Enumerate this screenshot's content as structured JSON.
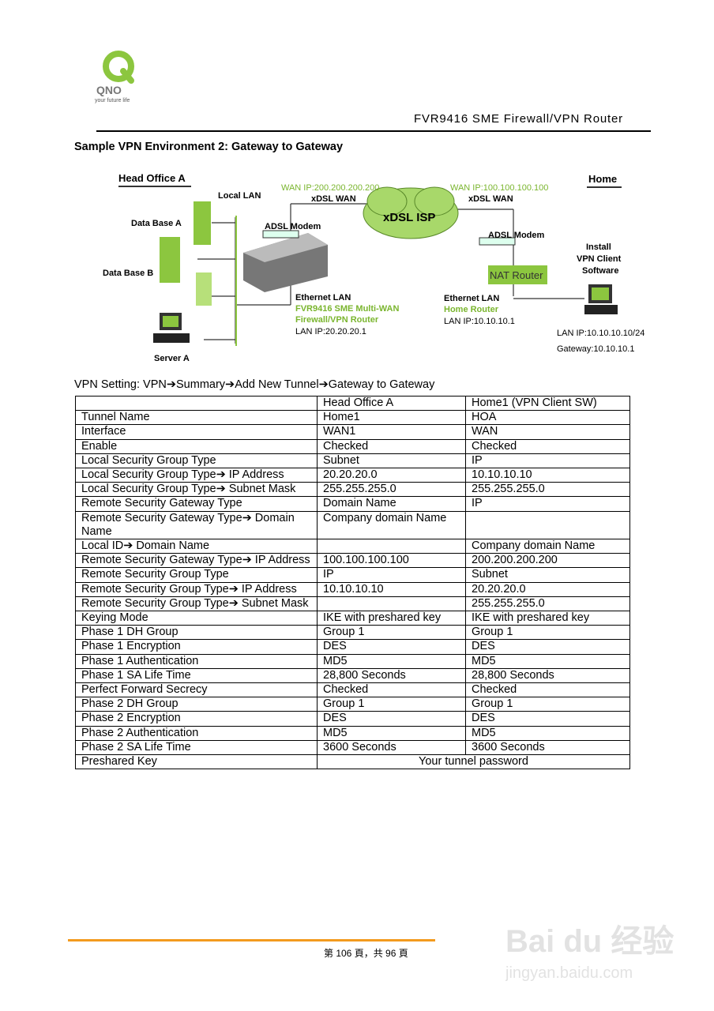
{
  "header": {
    "logo_text": "QNO",
    "logo_tagline": "your future life",
    "title": "FVR9416 SME Firewall/VPN Router"
  },
  "section_title": "Sample VPN Environment 2: Gateway to Gateway",
  "diagram": {
    "head_office": "Head Office A",
    "home": "Home",
    "local_lan": "Local LAN",
    "db_a": "Data Base  A",
    "db_b": "Data Base B",
    "server_a": "Server A",
    "wan_ip_left": "WAN IP:200.200.200.200",
    "xdsl_wan_left": "xDSL WAN",
    "wan_ip_right": "WAN IP:100.100.100.100",
    "xdsl_wan_right": "xDSL WAN",
    "isp": "xDSL ISP",
    "modem_left": "ADSL Modem",
    "modem_right": "ADSL Modem",
    "nat_router": "NAT Router",
    "eth_lan_left": "Ethernet LAN",
    "router_name_1": "FVR9416 SME Multi-WAN",
    "router_name_2": "Firewall/VPN Router",
    "lan_ip_left": "LAN IP:20.20.20.1",
    "eth_lan_right": "Ethernet LAN",
    "home_router": "Home Router",
    "lan_ip_right": "LAN IP:10.10.10.1",
    "install_1": "Install",
    "install_2": "VPN Client",
    "install_3": "Software",
    "client_lan_ip": "LAN IP:10.10.10.10/24",
    "client_gateway": "Gateway:10.10.10.1",
    "colors": {
      "green": "#8cc63f",
      "text_green": "#7ab52e"
    }
  },
  "vpn_path": "VPN Setting: VPN➔Summary➔Add New Tunnel➔Gateway to Gateway",
  "table": {
    "headers": [
      "",
      "Head Office A",
      "Home1 (VPN Client SW)"
    ],
    "rows": [
      [
        "Tunnel Name",
        "Home1",
        "HOA"
      ],
      [
        "Interface",
        "WAN1",
        "WAN"
      ],
      [
        "Enable",
        "Checked",
        "Checked"
      ],
      [
        "Local Security Group Type",
        "Subnet",
        "IP"
      ],
      [
        "Local Security Group Type➔ IP Address",
        "20.20.20.0",
        "10.10.10.10"
      ],
      [
        "Local Security Group Type➔ Subnet Mask",
        "255.255.255.0",
        "255.255.255.0"
      ],
      [
        "Remote Security Gateway Type",
        "Domain Name",
        "IP"
      ],
      [
        "Remote Security Gateway Type➔ Domain Name",
        "Company domain Name",
        ""
      ],
      [
        "Local ID➔ Domain Name",
        "",
        "Company domain Name"
      ],
      [
        "Remote Security Gateway Type➔ IP Address",
        "100.100.100.100",
        "200.200.200.200"
      ],
      [
        "Remote Security Group Type",
        "IP",
        "Subnet"
      ],
      [
        "Remote Security Group Type➔ IP Address",
        "10.10.10.10",
        "20.20.20.0"
      ],
      [
        "Remote Security Group Type➔ Subnet Mask",
        "",
        "255.255.255.0"
      ],
      [
        "Keying Mode",
        "IKE with preshared key",
        "IKE with preshared key"
      ],
      [
        "Phase 1 DH Group",
        "Group 1",
        "Group 1"
      ],
      [
        "Phase 1 Encryption",
        "DES",
        "DES"
      ],
      [
        "Phase 1 Authentication",
        "MD5",
        "MD5"
      ],
      [
        "Phase 1 SA Life Time",
        "28,800 Seconds",
        "28,800 Seconds"
      ],
      [
        "Perfect Forward Secrecy",
        "Checked",
        "Checked"
      ],
      [
        "Phase 2 DH Group",
        "Group 1",
        "Group 1"
      ],
      [
        "Phase 2 Encryption",
        "DES",
        "DES"
      ],
      [
        "Phase 2 Authentication",
        "MD5",
        "MD5"
      ],
      [
        "Phase 2 SA Life Time",
        "3600 Seconds",
        "3600 Seconds"
      ]
    ],
    "preshared_label": "Preshared Key",
    "preshared_value": "Your tunnel password"
  },
  "footer": {
    "page_text": "第 106 頁，共 96 頁"
  },
  "watermark": {
    "text": "Baidu经验",
    "url_text": "jingyan.baidu.com"
  }
}
